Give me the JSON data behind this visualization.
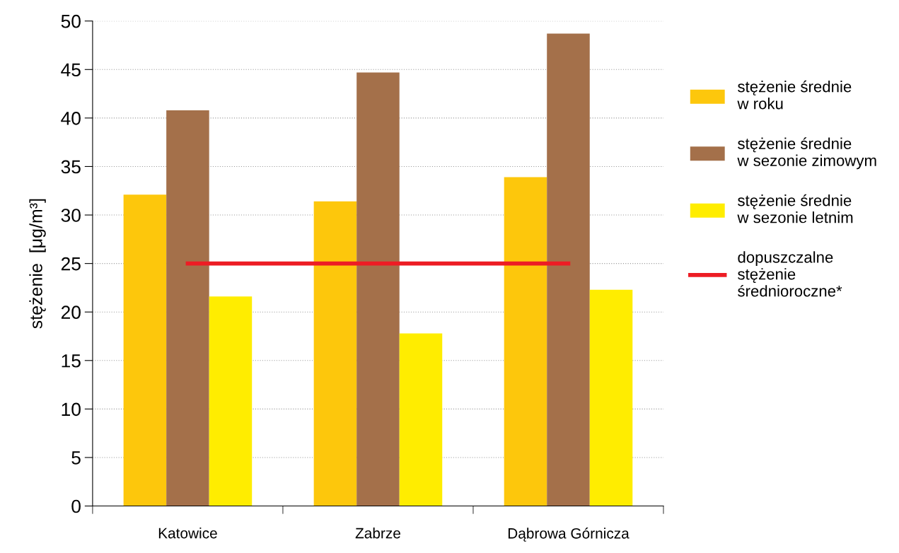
{
  "chart_data": {
    "type": "bar",
    "ylabel": "stężenie  [μg/m³]",
    "categories": [
      "Katowice",
      "Zabrze",
      "Dąbrowa Górnicza"
    ],
    "series": [
      {
        "name": "stężenie średnie\nw roku",
        "color": "#fdc70c",
        "values": [
          32.1,
          31.4,
          33.9
        ]
      },
      {
        "name": "stężenie średnie\nw sezonie zimowym",
        "color": "#a4704a",
        "values": [
          40.8,
          44.7,
          48.7
        ]
      },
      {
        "name": "stężenie średnie\nw sezonie letnim",
        "color": "#ffed00",
        "values": [
          21.6,
          17.8,
          22.3
        ]
      },
      {
        "name": "dopuszczalne\nstężenie\nśrednioroczne*",
        "type": "line",
        "color": "#ed1c24",
        "values": [
          25,
          25,
          25
        ]
      }
    ],
    "ylim": [
      0,
      50
    ],
    "yticks": [
      0,
      5,
      10,
      15,
      20,
      25,
      30,
      35,
      40,
      45,
      50
    ],
    "grid": "y",
    "legend": "right"
  }
}
